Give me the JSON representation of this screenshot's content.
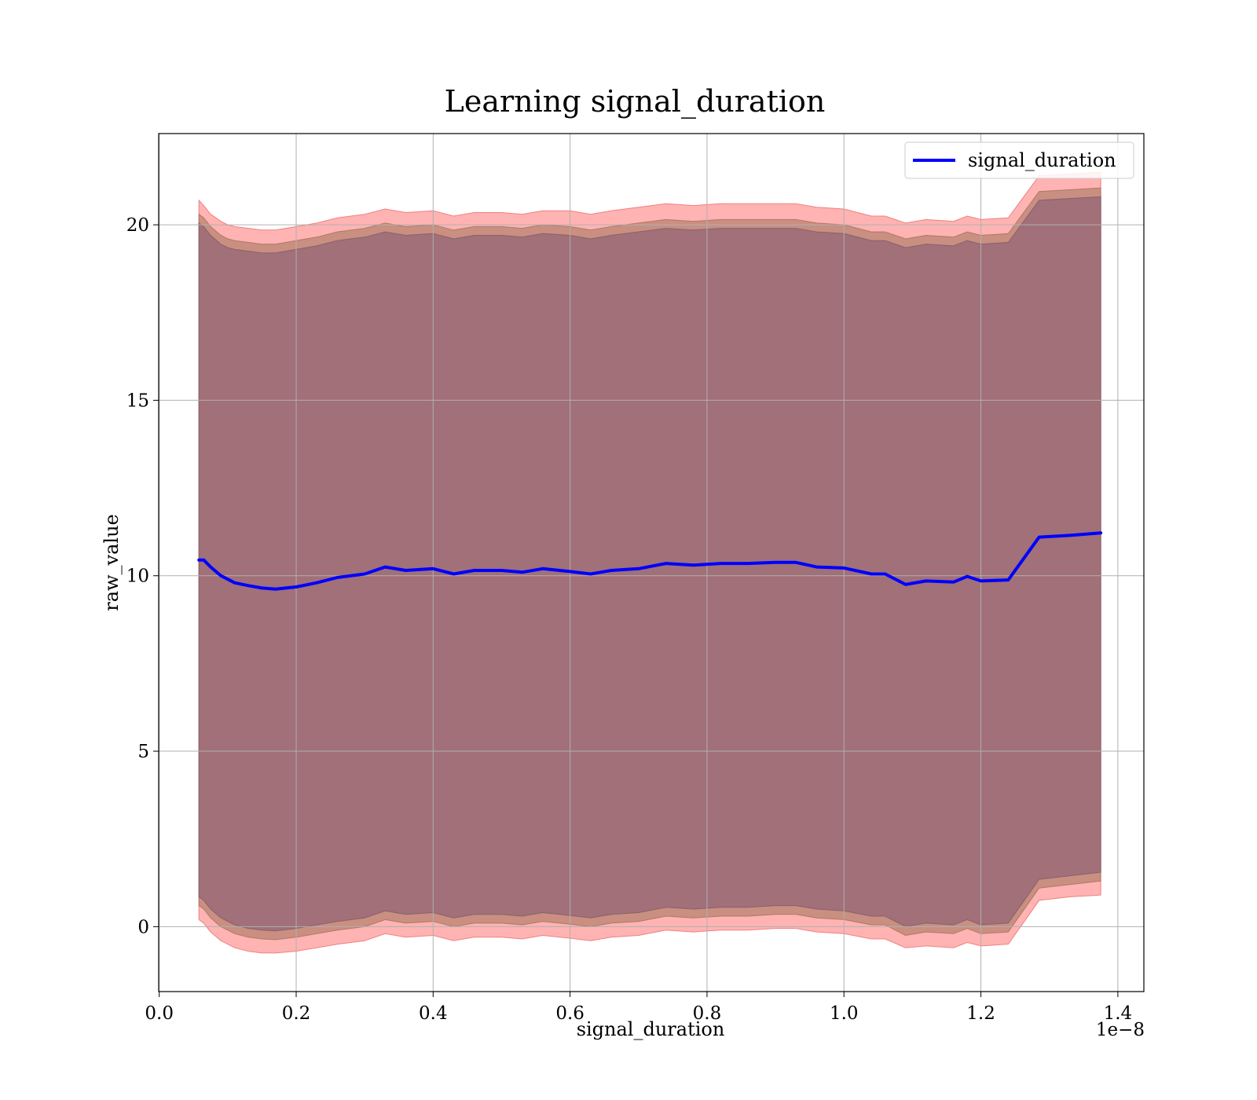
{
  "chart_data": {
    "type": "line",
    "title": "Learning signal_duration",
    "xlabel": "signal_duration",
    "ylabel": "raw_value",
    "x_offset_label": "1e−8",
    "xlim": [
      -0.0008,
      1.438
    ],
    "ylim": [
      -1.85,
      22.6
    ],
    "x_ticks": [
      0.0,
      0.2,
      0.4,
      0.6,
      0.8,
      1.0,
      1.2,
      1.4
    ],
    "x_tick_labels": [
      "0.0",
      "0.2",
      "0.4",
      "0.6",
      "0.8",
      "1.0",
      "1.2",
      "1.4"
    ],
    "y_ticks": [
      0,
      5,
      10,
      15,
      20
    ],
    "y_tick_labels": [
      "0",
      "5",
      "10",
      "15",
      "20"
    ],
    "grid": true,
    "legend_position": "top-right",
    "colors": {
      "line": "#0000ff",
      "band_outer": "#ffb3b3",
      "band_outer_edge": "#f08080",
      "band_middle": "#c98f80",
      "band_inner": "#a17078"
    },
    "series": [
      {
        "name": "signal_duration",
        "x": [
          0.058,
          0.065,
          0.075,
          0.09,
          0.1,
          0.11,
          0.13,
          0.15,
          0.17,
          0.2,
          0.23,
          0.26,
          0.3,
          0.33,
          0.36,
          0.4,
          0.43,
          0.46,
          0.5,
          0.53,
          0.56,
          0.6,
          0.63,
          0.66,
          0.7,
          0.74,
          0.78,
          0.82,
          0.86,
          0.9,
          0.93,
          0.96,
          1.0,
          1.04,
          1.06,
          1.09,
          1.12,
          1.16,
          1.18,
          1.2,
          1.24,
          1.285,
          1.33,
          1.375
        ],
        "y": [
          10.45,
          10.45,
          10.25,
          10.0,
          9.9,
          9.8,
          9.72,
          9.65,
          9.62,
          9.68,
          9.8,
          9.95,
          10.05,
          10.25,
          10.15,
          10.2,
          10.05,
          10.15,
          10.15,
          10.1,
          10.2,
          10.12,
          10.05,
          10.15,
          10.2,
          10.35,
          10.3,
          10.35,
          10.35,
          10.38,
          10.38,
          10.25,
          10.22,
          10.05,
          10.05,
          9.75,
          9.85,
          9.82,
          9.98,
          9.85,
          9.88,
          11.1,
          11.15,
          11.22
        ],
        "band_outer_upper": [
          20.7,
          20.55,
          20.3,
          20.1,
          20.0,
          19.95,
          19.9,
          19.85,
          19.85,
          19.95,
          20.05,
          20.2,
          20.3,
          20.45,
          20.35,
          20.4,
          20.25,
          20.35,
          20.35,
          20.3,
          20.4,
          20.4,
          20.3,
          20.4,
          20.5,
          20.6,
          20.55,
          20.6,
          20.6,
          20.6,
          20.6,
          20.5,
          20.45,
          20.25,
          20.25,
          20.05,
          20.15,
          20.1,
          20.25,
          20.15,
          20.2,
          21.4,
          21.45,
          21.5
        ],
        "band_middle_upper": [
          20.3,
          20.2,
          19.95,
          19.7,
          19.6,
          19.55,
          19.5,
          19.45,
          19.45,
          19.55,
          19.65,
          19.8,
          19.9,
          20.05,
          19.95,
          20.0,
          19.85,
          19.95,
          19.95,
          19.9,
          20.0,
          19.95,
          19.85,
          19.95,
          20.05,
          20.15,
          20.1,
          20.15,
          20.15,
          20.15,
          20.15,
          20.05,
          20.0,
          19.8,
          19.8,
          19.6,
          19.7,
          19.65,
          19.8,
          19.7,
          19.75,
          20.95,
          21.0,
          21.05
        ],
        "band_inner_upper": [
          20.05,
          19.95,
          19.7,
          19.45,
          19.35,
          19.3,
          19.25,
          19.2,
          19.2,
          19.3,
          19.4,
          19.55,
          19.65,
          19.8,
          19.7,
          19.75,
          19.6,
          19.7,
          19.7,
          19.65,
          19.75,
          19.7,
          19.6,
          19.7,
          19.8,
          19.9,
          19.85,
          19.9,
          19.9,
          19.9,
          19.9,
          19.8,
          19.75,
          19.55,
          19.55,
          19.35,
          19.45,
          19.4,
          19.55,
          19.45,
          19.5,
          20.7,
          20.75,
          20.8
        ],
        "band_inner_lower": [
          0.85,
          0.75,
          0.5,
          0.25,
          0.15,
          0.05,
          -0.05,
          -0.1,
          -0.12,
          -0.05,
          0.05,
          0.15,
          0.25,
          0.45,
          0.35,
          0.4,
          0.25,
          0.35,
          0.35,
          0.3,
          0.4,
          0.32,
          0.25,
          0.35,
          0.4,
          0.55,
          0.5,
          0.55,
          0.55,
          0.6,
          0.6,
          0.5,
          0.45,
          0.3,
          0.3,
          0.0,
          0.1,
          0.05,
          0.2,
          0.05,
          0.1,
          1.35,
          1.45,
          1.55
        ],
        "band_middle_lower": [
          0.6,
          0.5,
          0.25,
          0.0,
          -0.1,
          -0.2,
          -0.3,
          -0.35,
          -0.37,
          -0.3,
          -0.2,
          -0.1,
          0.0,
          0.2,
          0.1,
          0.15,
          0.0,
          0.1,
          0.1,
          0.05,
          0.15,
          0.07,
          0.0,
          0.1,
          0.15,
          0.3,
          0.25,
          0.3,
          0.3,
          0.35,
          0.35,
          0.25,
          0.2,
          0.05,
          0.05,
          -0.25,
          -0.15,
          -0.2,
          -0.05,
          -0.2,
          -0.15,
          1.1,
          1.2,
          1.3
        ],
        "band_outer_lower": [
          0.2,
          0.1,
          -0.15,
          -0.4,
          -0.5,
          -0.6,
          -0.7,
          -0.75,
          -0.75,
          -0.7,
          -0.6,
          -0.5,
          -0.4,
          -0.2,
          -0.3,
          -0.25,
          -0.4,
          -0.3,
          -0.3,
          -0.35,
          -0.25,
          -0.33,
          -0.4,
          -0.3,
          -0.25,
          -0.1,
          -0.15,
          -0.1,
          -0.1,
          -0.05,
          -0.05,
          -0.15,
          -0.2,
          -0.35,
          -0.35,
          -0.6,
          -0.55,
          -0.6,
          -0.45,
          -0.55,
          -0.5,
          0.75,
          0.85,
          0.9
        ]
      }
    ]
  }
}
